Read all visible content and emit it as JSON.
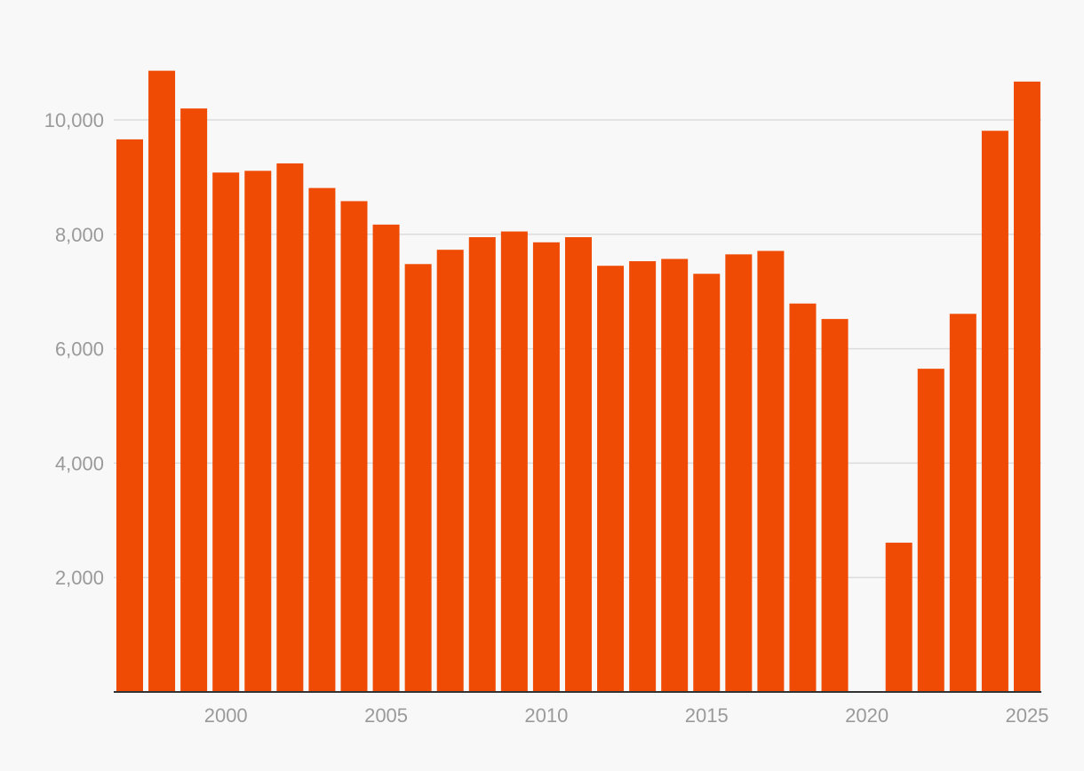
{
  "chart_data": {
    "type": "bar",
    "title": "",
    "xlabel": "",
    "ylabel": "",
    "categories": [
      1997,
      1998,
      1999,
      2000,
      2001,
      2002,
      2003,
      2004,
      2005,
      2006,
      2007,
      2008,
      2009,
      2010,
      2011,
      2012,
      2013,
      2014,
      2015,
      2016,
      2017,
      2018,
      2019,
      2020,
      2021,
      2022,
      2023,
      2024,
      2025
    ],
    "values": [
      9660,
      10860,
      10200,
      9080,
      9110,
      9240,
      8810,
      8580,
      8170,
      7480,
      7730,
      7950,
      8050,
      7860,
      7950,
      7450,
      7530,
      7570,
      7310,
      7650,
      7710,
      6790,
      6520,
      0,
      2610,
      5650,
      6610,
      9810,
      10670
    ],
    "ylim": [
      0,
      11000
    ],
    "y_ticks": [
      2000,
      4000,
      6000,
      8000,
      10000
    ],
    "y_tick_labels": [
      "2,000",
      "4,000",
      "6,000",
      "8,000",
      "10,000"
    ],
    "x_ticks": [
      2000,
      2005,
      2010,
      2015,
      2020,
      2025
    ],
    "x_tick_labels": [
      "2000",
      "2005",
      "2010",
      "2015",
      "2020",
      "2025"
    ],
    "grid": true,
    "legend": "none",
    "colors": {
      "bar": "#f04b04",
      "grid": "#dcdcdc",
      "axis": "#333333",
      "tick_text": "#9a9a9a",
      "background": "#f8f8f8"
    }
  }
}
